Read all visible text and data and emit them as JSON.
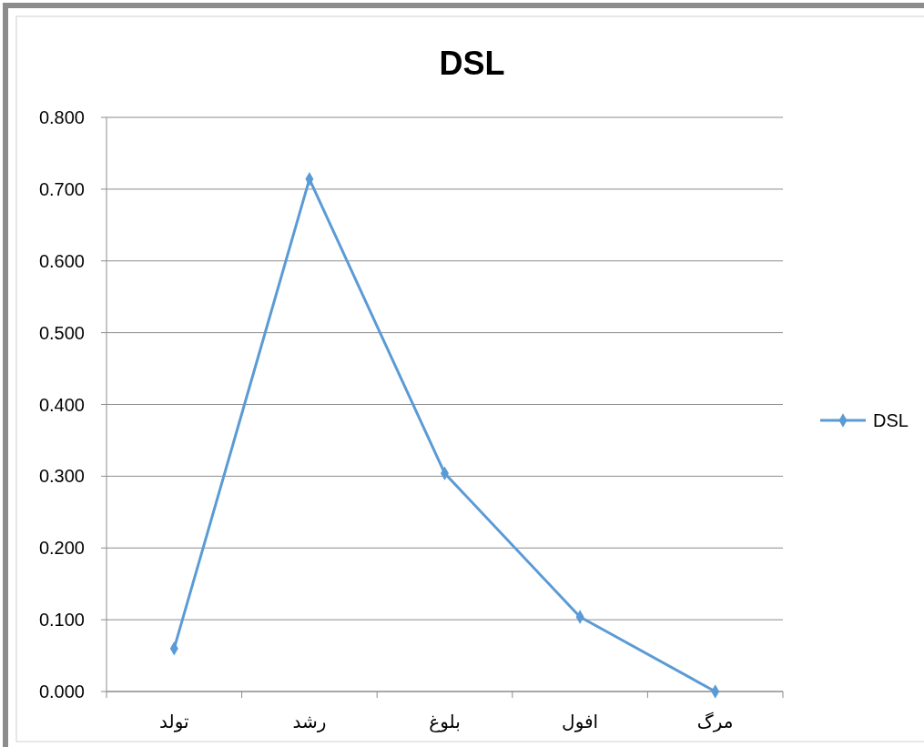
{
  "chart_data": {
    "type": "line",
    "title": "DSL",
    "categories": [
      "تولد",
      "رشد",
      "بلوغ",
      "افول",
      "مرگ"
    ],
    "series": [
      {
        "name": "DSL",
        "color": "#5b9bd5",
        "values": [
          0.06,
          0.714,
          0.304,
          0.104,
          0
        ]
      }
    ],
    "ylim": [
      0,
      0.8
    ],
    "yticks": [
      {
        "value": 0,
        "label": "0.000"
      },
      {
        "value": 0.1,
        "label": "0.100"
      },
      {
        "value": 0.2,
        "label": "0.200"
      },
      {
        "value": 0.3,
        "label": "0.300"
      },
      {
        "value": 0.4,
        "label": "0.400"
      },
      {
        "value": 0.5,
        "label": "0.500"
      },
      {
        "value": 0.6,
        "label": "0.600"
      },
      {
        "value": 0.7,
        "label": "0.700"
      },
      {
        "value": 0.8,
        "label": "0.800"
      }
    ],
    "grid": "y",
    "legend": "right",
    "marker": "diamond",
    "line_style": "solid"
  }
}
